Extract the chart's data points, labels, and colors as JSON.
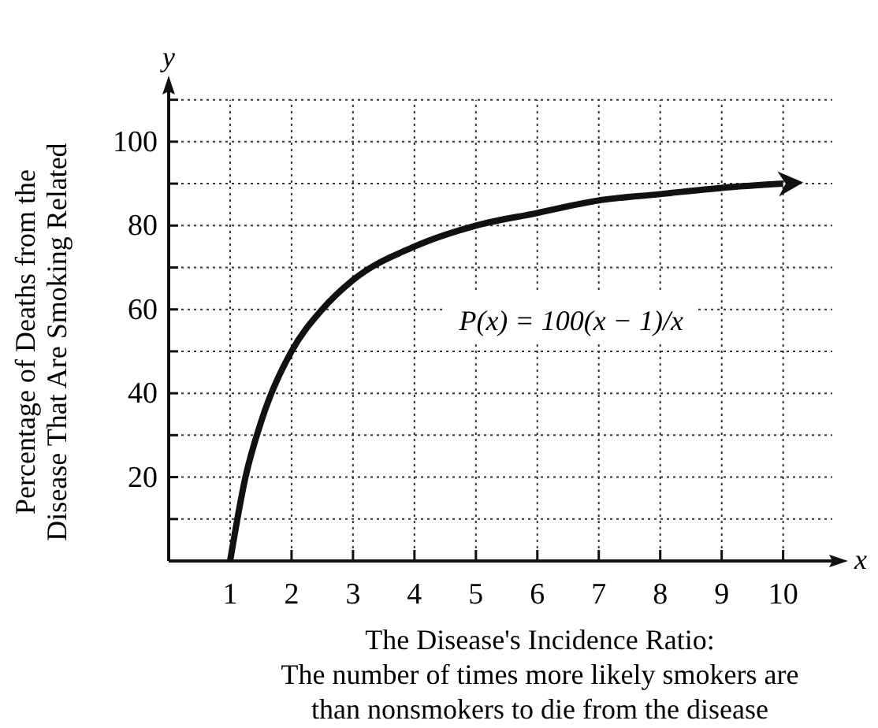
{
  "chart_data": {
    "type": "line",
    "xlabel": "The Disease's Incidence Ratio:\nThe number of times more likely smokers are\nthan nonsmokers to die from the disease",
    "ylabel": "Percentage of Deaths from the\nDisease That Are Smoking Related",
    "x": [
      1,
      1.25,
      1.5,
      2,
      2.5,
      3,
      4,
      5,
      6,
      7,
      8,
      9,
      10
    ],
    "series": [
      {
        "color": "#111111",
        "values": [
          0,
          20,
          33,
          50,
          60,
          67,
          75,
          80,
          83,
          86,
          87.5,
          89,
          90
        ]
      }
    ],
    "xlim": [
      0,
      10.8
    ],
    "ylim": [
      0,
      112
    ],
    "xticks": [
      1,
      2,
      3,
      4,
      5,
      6,
      7,
      8,
      9,
      10
    ],
    "yticks": [
      {
        "value": 10,
        "label": null
      },
      20,
      {
        "value": 30,
        "label": null
      },
      40,
      {
        "value": 50,
        "label": null
      },
      60,
      {
        "value": 70,
        "label": null
      },
      80,
      {
        "value": 90,
        "label": null
      },
      100,
      {
        "value": 110,
        "label": null
      }
    ],
    "grid": true,
    "marker": "none",
    "line_style": "solid",
    "annotations": [
      "P(x) = 100(x − 1)/x",
      "x",
      "y"
    ]
  }
}
